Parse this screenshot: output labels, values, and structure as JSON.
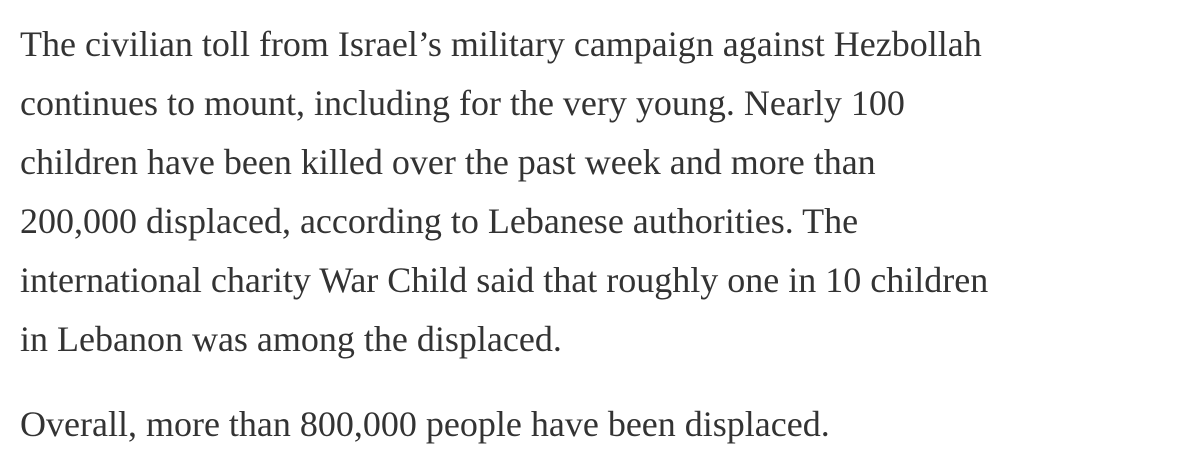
{
  "article": {
    "paragraphs": [
      {
        "lines": [
          "The civilian toll from Israel’s military campaign against Hezbollah",
          "continues to mount, including for the very young. Nearly 100",
          "children have been killed over the past week and more than",
          "200,000 displaced, according to Lebanese authorities. The",
          "international charity War Child said that roughly one in 10 children",
          "in Lebanon was among the displaced."
        ]
      },
      {
        "lines": [
          "Overall, more than 800,000 people have been displaced."
        ]
      }
    ]
  }
}
